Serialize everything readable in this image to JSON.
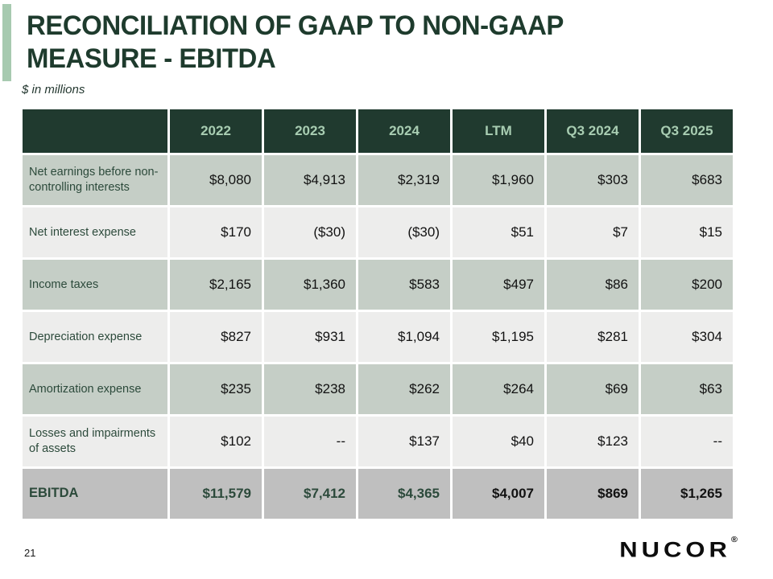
{
  "slide": {
    "title_line1": "RECONCILIATION OF GAAP TO NON-GAAP",
    "title_line2": "MEASURE - EBITDA",
    "subtitle": "$ in millions",
    "page_number": "21",
    "logo_text": "NUCOR",
    "logo_reg": "®"
  },
  "colors": {
    "accent_bar": "#a7cab0",
    "title_text": "#1e3b2d",
    "subtitle_text": "#243830",
    "header_bg": "#203a2f",
    "header_text": "#a8cdb2",
    "row_shaded": "#c5cec6",
    "row_light": "#ededec",
    "row_total": "#bfbfbf",
    "label_text": "#2c4a3b",
    "value_text": "#121212"
  },
  "table": {
    "columns": [
      "",
      "2022",
      "2023",
      "2024",
      "LTM",
      "Q3 2024",
      "Q3 2025"
    ],
    "rows": [
      {
        "label": "Net earnings before non-controlling interests",
        "values": [
          "$8,080",
          "$4,913",
          "$2,319",
          "$1,960",
          "$303",
          "$683"
        ]
      },
      {
        "label": "Net interest expense",
        "values": [
          "$170",
          "($30)",
          "($30)",
          "$51",
          "$7",
          "$15"
        ]
      },
      {
        "label": "Income taxes",
        "values": [
          "$2,165",
          "$1,360",
          "$583",
          "$497",
          "$86",
          "$200"
        ]
      },
      {
        "label": "Depreciation expense",
        "values": [
          "$827",
          "$931",
          "$1,094",
          "$1,195",
          "$281",
          "$304"
        ]
      },
      {
        "label": "Amortization expense",
        "values": [
          "$235",
          "$238",
          "$262",
          "$264",
          "$69",
          "$63"
        ]
      },
      {
        "label": "Losses and impairments of assets",
        "values": [
          "$102",
          "--",
          "$137",
          "$40",
          "$123",
          "--"
        ]
      },
      {
        "label": "EBITDA",
        "values": [
          "$11,579",
          "$7,412",
          "$4,365",
          "$4,007",
          "$869",
          "$1,265"
        ]
      }
    ]
  }
}
